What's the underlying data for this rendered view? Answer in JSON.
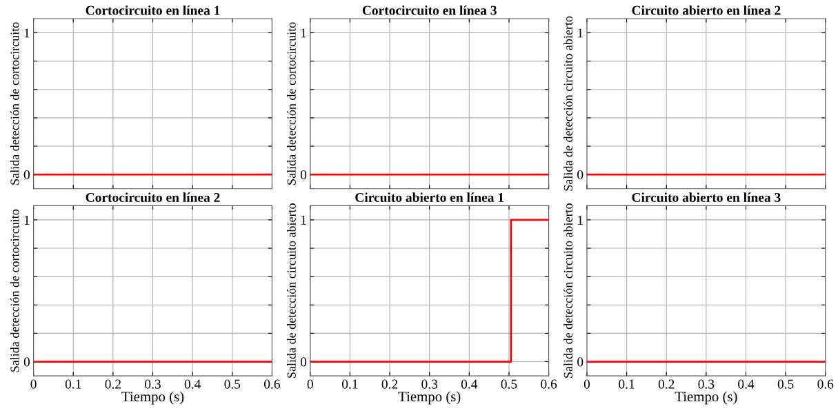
{
  "chart_data": [
    {
      "type": "line",
      "title": "Cortocircuito en línea 1",
      "ylabel": "Salida detección de cortocircuito",
      "x": [
        0,
        0.6
      ],
      "series": [
        {
          "color": "#ff0000",
          "values": [
            0,
            0
          ]
        }
      ],
      "xlim": [
        0,
        0.6
      ],
      "ylim": [
        -0.1,
        1.1
      ],
      "xticks": [
        {
          "value": 0,
          "label": null
        },
        {
          "value": 0.1,
          "label": null
        },
        {
          "value": 0.2,
          "label": null
        },
        {
          "value": 0.3,
          "label": null
        },
        {
          "value": 0.4,
          "label": null
        },
        {
          "value": 0.5,
          "label": null
        },
        {
          "value": 0.6,
          "label": null
        }
      ],
      "yticks": [
        0,
        {
          "value": 0.2,
          "label": null
        },
        {
          "value": 0.4,
          "label": null
        },
        {
          "value": 0.6,
          "label": null
        },
        {
          "value": 0.8,
          "label": null
        },
        1
      ],
      "grid": true,
      "tick_labels": "y"
    },
    {
      "type": "line",
      "title": "Cortocircuito en línea 3",
      "ylabel": "Salida detección de cortocircuito",
      "x": [
        0,
        0.6
      ],
      "series": [
        {
          "color": "#ff0000",
          "values": [
            0,
            0
          ]
        }
      ],
      "xlim": [
        0,
        0.6
      ],
      "ylim": [
        -0.1,
        1.1
      ],
      "xticks": [
        {
          "value": 0,
          "label": null
        },
        {
          "value": 0.1,
          "label": null
        },
        {
          "value": 0.2,
          "label": null
        },
        {
          "value": 0.3,
          "label": null
        },
        {
          "value": 0.4,
          "label": null
        },
        {
          "value": 0.5,
          "label": null
        },
        {
          "value": 0.6,
          "label": null
        }
      ],
      "yticks": [
        0,
        {
          "value": 0.2,
          "label": null
        },
        {
          "value": 0.4,
          "label": null
        },
        {
          "value": 0.6,
          "label": null
        },
        {
          "value": 0.8,
          "label": null
        },
        1
      ],
      "grid": true,
      "tick_labels": "y"
    },
    {
      "type": "line",
      "title": "Circuito abierto en línea 2",
      "ylabel": "Salida de detección circuito abierto",
      "x": [
        0,
        0.6
      ],
      "series": [
        {
          "color": "#ff0000",
          "values": [
            0,
            0
          ]
        }
      ],
      "xlim": [
        0,
        0.6
      ],
      "ylim": [
        -0.1,
        1.1
      ],
      "xticks": [
        {
          "value": 0,
          "label": null
        },
        {
          "value": 0.1,
          "label": null
        },
        {
          "value": 0.2,
          "label": null
        },
        {
          "value": 0.3,
          "label": null
        },
        {
          "value": 0.4,
          "label": null
        },
        {
          "value": 0.5,
          "label": null
        },
        {
          "value": 0.6,
          "label": null
        }
      ],
      "yticks": [
        0,
        {
          "value": 0.2,
          "label": null
        },
        {
          "value": 0.4,
          "label": null
        },
        {
          "value": 0.6,
          "label": null
        },
        {
          "value": 0.8,
          "label": null
        },
        1
      ],
      "grid": true,
      "tick_labels": "y"
    },
    {
      "type": "line",
      "title": "Cortocircuito en línea 2",
      "ylabel": "Salida detección de cortocircuito",
      "xlabel": "Tiempo (s)",
      "x": [
        0,
        0.6
      ],
      "series": [
        {
          "color": "#ff0000",
          "values": [
            0,
            0
          ]
        }
      ],
      "xlim": [
        0,
        0.6
      ],
      "ylim": [
        -0.1,
        1.1
      ],
      "xticks": [
        0,
        0.1,
        0.2,
        0.3,
        0.4,
        0.5,
        0.6
      ],
      "yticks": [
        0,
        {
          "value": 0.2,
          "label": null
        },
        {
          "value": 0.4,
          "label": null
        },
        {
          "value": 0.6,
          "label": null
        },
        {
          "value": 0.8,
          "label": null
        },
        1
      ],
      "grid": true
    },
    {
      "type": "line",
      "title": "Circuito abierto en línea 1",
      "ylabel": "Salida de detección circuito abierto",
      "xlabel": "Tiempo (s)",
      "x": [
        0,
        0.505,
        0.505,
        0.6
      ],
      "series": [
        {
          "color": "#ff0000",
          "values": [
            0,
            0,
            1,
            1
          ]
        }
      ],
      "xlim": [
        0,
        0.6
      ],
      "ylim": [
        -0.1,
        1.1
      ],
      "xticks": [
        0,
        0.1,
        0.2,
        0.3,
        0.4,
        0.5,
        0.6
      ],
      "yticks": [
        0,
        {
          "value": 0.2,
          "label": null
        },
        {
          "value": 0.4,
          "label": null
        },
        {
          "value": 0.6,
          "label": null
        },
        {
          "value": 0.8,
          "label": null
        },
        1
      ],
      "grid": true
    },
    {
      "type": "line",
      "title": "Circuito abierto en línea 3",
      "ylabel": "Salida de detección circuito abierto",
      "xlabel": "Tiempo (s)",
      "x": [
        0,
        0.6
      ],
      "series": [
        {
          "color": "#ff0000",
          "values": [
            0,
            0
          ]
        }
      ],
      "xlim": [
        0,
        0.6
      ],
      "ylim": [
        -0.1,
        1.1
      ],
      "xticks": [
        0,
        0.1,
        0.2,
        0.3,
        0.4,
        0.5,
        0.6
      ],
      "yticks": [
        0,
        {
          "value": 0.2,
          "label": null
        },
        {
          "value": 0.4,
          "label": null
        },
        {
          "value": 0.6,
          "label": null
        },
        {
          "value": 0.8,
          "label": null
        },
        1
      ],
      "grid": true
    }
  ]
}
